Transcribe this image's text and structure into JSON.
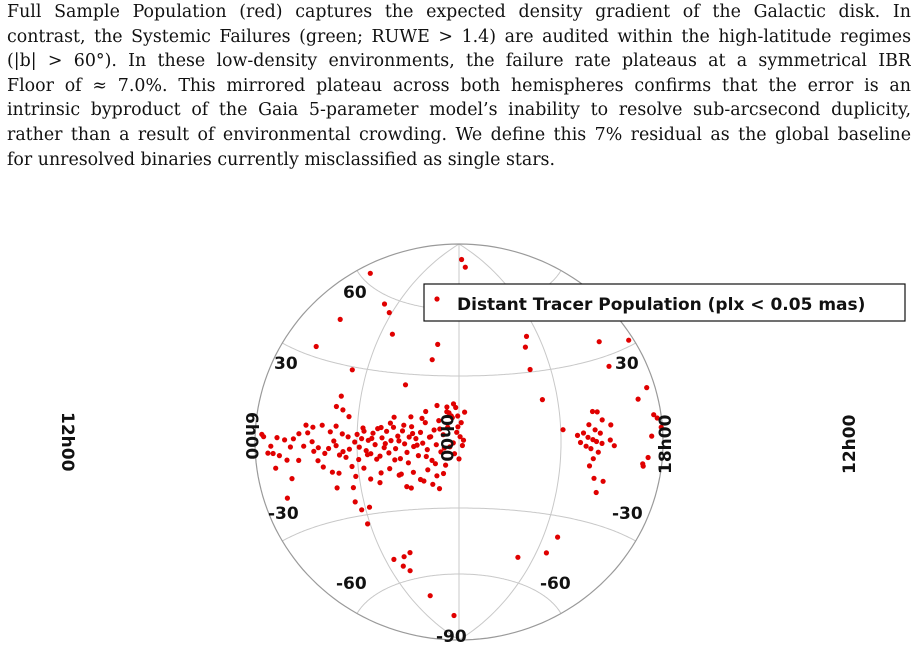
{
  "paragraph_lines": [
    "Full Sample Population (red) captures the expected density gradient of the Galactic disk. In",
    "contrast, the Systemic Failures (green; RUWE > 1.4) are audited within the high-latitude regimes",
    "(|b| > 60°). In these low-density environments, the failure rate plateaus at a symmetrical IBR",
    "Floor of ≈ 7.0%. This mirrored plateau across both hemispheres confirms that the error is an",
    "intrinsic byproduct of the Gaia 5-parameter model’s inability to resolve sub-arcsecond duplicity,",
    "rather than a result of environmental crowding. We define this 7% residual as the global baseline",
    "for unresolved binaries currently misclassified as single stars."
  ],
  "chart_data": {
    "type": "scatter",
    "projection": "aitoff",
    "legend": {
      "label": "Distant Tracer Population (plx < 0.05 mas)",
      "placement": "top-right"
    },
    "lat_labels": [
      "60",
      "30",
      "30",
      "-30",
      "-30",
      "-60",
      "-60",
      "-90"
    ],
    "lon_labels": [
      "12h00",
      "6h00",
      "0h00",
      "18h00",
      "12h00"
    ],
    "grid": true,
    "marker_color": "#e00000",
    "series": [
      {
        "name": "Distant Tracer Population (plx < 0.05 mas)",
        "points": [
          [
            -93.3,
            54.3
          ],
          [
            -162.8,
            62.7
          ],
          [
            -141.4,
            45.1
          ],
          [
            -106.3,
            56.8
          ],
          [
            -77,
            46.1
          ],
          [
            -23.7,
            44.1
          ],
          [
            -27.7,
            37.1
          ],
          [
            -147.5,
            33.5
          ],
          [
            -104.1,
            28.8
          ],
          [
            -50.6,
            25.2
          ],
          [
            -11,
            15.9
          ],
          [
            -1.2,
            11.8
          ],
          [
            -174.1,
            2.3
          ],
          [
            -172.5,
            1.6
          ],
          [
            -166.1,
            -1.3
          ],
          [
            -160.6,
            1.4
          ],
          [
            -153.9,
            0.7
          ],
          [
            -148.8,
            -1.7
          ],
          [
            -168.9,
            -3.4
          ],
          [
            -164.3,
            -3.6
          ],
          [
            -158.9,
            -4.4
          ],
          [
            -163.3,
            -8.3
          ],
          [
            -152.5,
            -6
          ],
          [
            -142.2,
            -6.4
          ],
          [
            -146.1,
            1.1
          ],
          [
            -141.4,
            2.9
          ],
          [
            -137.1,
            -1.5
          ],
          [
            -129.6,
            0.1
          ],
          [
            -124.2,
            -2.1
          ],
          [
            -133.7,
            3.3
          ],
          [
            -135.6,
            6
          ],
          [
            -129.4,
            5.4
          ],
          [
            -121.3,
            6.3
          ],
          [
            -128.3,
            -3.4
          ],
          [
            -125.1,
            -6.9
          ],
          [
            -118.7,
            -4.3
          ],
          [
            -115.1,
            -2.5
          ],
          [
            -110.5,
            0.4
          ],
          [
            -113.8,
            3.9
          ],
          [
            -108.9,
            6.2
          ],
          [
            -103.1,
            3.2
          ],
          [
            -102.5,
            -3.8
          ],
          [
            -100.1,
            -6.1
          ],
          [
            -105.8,
            -5.1
          ],
          [
            -108.5,
            -1.4
          ],
          [
            -121,
            -9.4
          ],
          [
            -113.5,
            -11.6
          ],
          [
            -107.7,
            -12.2
          ],
          [
            -150.4,
            -12.3
          ],
          [
            -158.7,
            -18.3
          ],
          [
            -111.7,
            -17.8
          ],
          [
            -98.1,
            -24.2
          ],
          [
            -96.9,
            -18.4
          ],
          [
            -110.6,
            13.8
          ],
          [
            -107.9,
            18
          ],
          [
            -104.4,
            12.7
          ],
          [
            -98.2,
            10.2
          ],
          [
            -97.9,
            2.1
          ],
          [
            -96.8,
            -2.9
          ],
          [
            -95.5,
            -9.9
          ],
          [
            -93.1,
            -14
          ],
          [
            -92,
            0
          ],
          [
            -90,
            3.1
          ],
          [
            -88,
            -2.1
          ],
          [
            -86,
            1.4
          ],
          [
            -84,
            4.5
          ],
          [
            -82,
            -3.6
          ],
          [
            -80,
            0.7
          ],
          [
            -78,
            -4.9
          ],
          [
            -76,
            3.7
          ],
          [
            -74,
            -1.1
          ],
          [
            -72,
            5.7
          ],
          [
            -70,
            -6
          ],
          [
            -68,
            1.8
          ],
          [
            -66,
            -2.4
          ],
          [
            -64,
            4.6
          ],
          [
            -62,
            -4.7
          ],
          [
            -60,
            0.6
          ],
          [
            -58,
            6.4
          ],
          [
            -56,
            -2.9
          ],
          [
            -54,
            2.6
          ],
          [
            -52,
            -7.3
          ],
          [
            -50,
            4.9
          ],
          [
            -48,
            -0.8
          ],
          [
            -46,
            -4.6
          ],
          [
            -44,
            2.2
          ],
          [
            -42,
            6.8
          ],
          [
            -40,
            -2
          ],
          [
            -38,
            1.5
          ],
          [
            -36,
            -6.1
          ],
          [
            -34,
            4.3
          ],
          [
            -32,
            -0.5
          ],
          [
            -30,
            8.7
          ],
          [
            -28,
            -3.4
          ],
          [
            -26,
            2.2
          ],
          [
            -24,
            -8.3
          ],
          [
            -22,
            5.4
          ],
          [
            -20,
            -1.2
          ],
          [
            -18,
            9.7
          ],
          [
            -16,
            -4.5
          ],
          [
            -14,
            3.3
          ],
          [
            -12,
            -10.5
          ],
          [
            -10,
            6.7
          ],
          [
            -8,
            -2.2
          ],
          [
            -6,
            11.1
          ],
          [
            -4,
            -5.3
          ],
          [
            -2,
            4.4
          ],
          [
            0,
            -7.7
          ],
          [
            1,
            2.4
          ],
          [
            2,
            8.8
          ],
          [
            3,
            -1.6
          ],
          [
            4,
            0.8
          ],
          [
            5,
            13.6
          ],
          [
            -89,
            -7.2
          ],
          [
            -85,
            5.8
          ],
          [
            -81,
            -5.3
          ],
          [
            -77,
            1.5
          ],
          [
            -73,
            -7.3
          ],
          [
            -69,
            6.2
          ],
          [
            -65,
            -0.7
          ],
          [
            -61,
            8.2
          ],
          [
            -57,
            -7.8
          ],
          [
            -53,
            0.5
          ],
          [
            -49,
            7.4
          ],
          [
            -45,
            -9.2
          ],
          [
            -41,
            3.8
          ],
          [
            -37,
            -1.4
          ],
          [
            -33,
            10.6
          ],
          [
            -29,
            -6.5
          ],
          [
            -25,
            2.4
          ],
          [
            -21,
            -9.8
          ],
          [
            -17,
            5.9
          ],
          [
            -13,
            -2.7
          ],
          [
            -9,
            13.2
          ],
          [
            -5,
            -0.4
          ],
          [
            -1,
            6.9
          ],
          [
            -3,
            15.7
          ],
          [
            -5,
            17.3
          ],
          [
            -7,
            11.9
          ],
          [
            -11,
            13.7
          ],
          [
            -20,
            16.5
          ],
          [
            -30,
            13.7
          ],
          [
            -43,
            11.2
          ],
          [
            -58,
            10.8
          ],
          [
            -70,
            -13.2
          ],
          [
            -52,
            -14.1
          ],
          [
            -41,
            -13.5
          ],
          [
            -32,
            -17.5
          ],
          [
            -28,
            -12.5
          ],
          [
            -20,
            -15.3
          ],
          [
            -14,
            -14.3
          ],
          [
            -18,
            -21.1
          ],
          [
            -24,
            -19.1
          ],
          [
            -35,
            -16.8
          ],
          [
            -44,
            -20.4
          ],
          [
            -48,
            -19.7
          ],
          [
            -54,
            -14.5
          ],
          [
            -62,
            -11.5
          ],
          [
            -72,
            -17.3
          ],
          [
            -80,
            -15.5
          ],
          [
            -85,
            -10.8
          ],
          [
            -94,
            -27.7
          ],
          [
            -86,
            -27.1
          ],
          [
            -92.5,
            -33.7
          ],
          [
            -80.1,
            -50.1
          ],
          [
            -72.8,
            -53.7
          ],
          [
            -66.9,
            -56.2
          ],
          [
            -58.4,
            -48.6
          ],
          [
            -66.9,
            -49.9
          ],
          [
            -54.9,
            -68.5
          ],
          [
            -16.3,
            -78.8
          ],
          [
            12.6,
            82.9
          ],
          [
            21.2,
            79.3
          ],
          [
            45.1,
            61.2
          ],
          [
            70.1,
            31.1
          ],
          [
            76.2,
            17.9
          ],
          [
            92,
            5
          ],
          [
            104.6,
            2.6
          ],
          [
            107.2,
            -0.2
          ],
          [
            110,
            3.5
          ],
          [
            112.2,
            -1.6
          ],
          [
            113.9,
            1.8
          ],
          [
            115.2,
            6.6
          ],
          [
            116.5,
            -2.5
          ],
          [
            118.2,
            0.9
          ],
          [
            119.1,
            -6.3
          ],
          [
            120.4,
            4.6
          ],
          [
            121.3,
            0.2
          ],
          [
            123.1,
            -3.8
          ],
          [
            124.8,
            3.3
          ],
          [
            126.2,
            -0.5
          ],
          [
            127.4,
            8.1
          ],
          [
            123.8,
            11.2
          ],
          [
            119.7,
            11.5
          ],
          [
            116.3,
            -9.1
          ],
          [
            121.8,
            -13.6
          ],
          [
            126.4,
            -18.7
          ],
          [
            130.4,
            -14.3
          ],
          [
            133.5,
            0.7
          ],
          [
            134.6,
            6.1
          ],
          [
            137.1,
            -1.3
          ],
          [
            162.3,
            13.7
          ],
          [
            170.1,
            1.8
          ],
          [
            173.5,
            8.2
          ],
          [
            176.2,
            7.1
          ],
          [
            178.9,
            4.3
          ],
          [
            172.5,
            16.6
          ],
          [
            167.4,
            -4.8
          ],
          [
            163.2,
            -6.9
          ],
          [
            163.9,
            -7.6
          ],
          [
            164.9,
            42.6
          ],
          [
            164.3,
            46.9
          ],
          [
            147.6,
            35.3
          ],
          [
            145.5,
            26.4
          ],
          [
            175.3,
            31.7
          ],
          [
            71.9,
            -49.8
          ],
          [
            101.2,
            -45.3
          ],
          [
            104.7,
            -38.2
          ],
          [
            71.7,
            40.8
          ],
          [
            77,
            45.1
          ],
          [
            58.5,
            64.8
          ]
        ]
      }
    ]
  }
}
